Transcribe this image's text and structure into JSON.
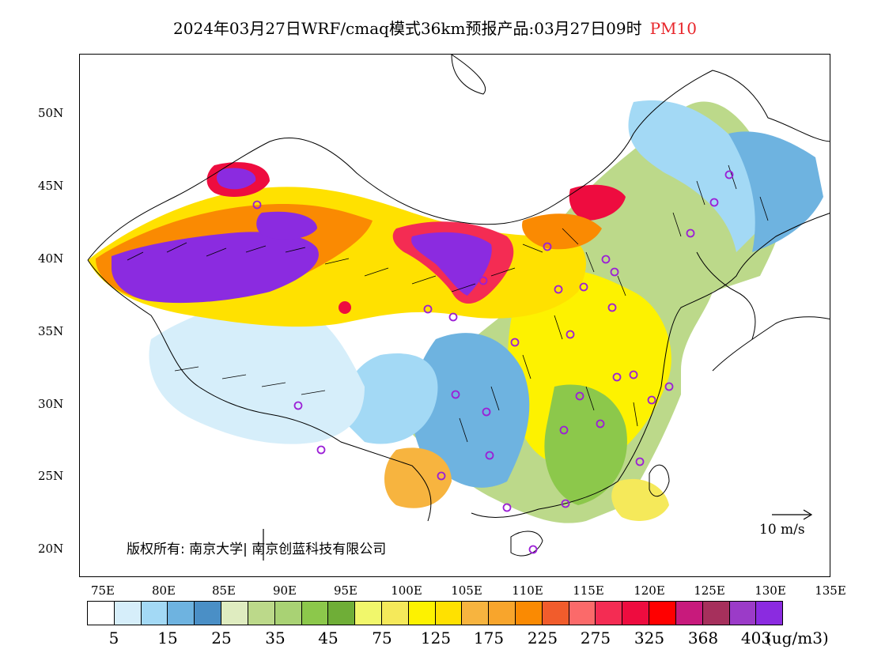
{
  "title": {
    "main": "2024年03月27日WRF/cmaq模式36km预报产品:03月27日09时",
    "variable": "PM10"
  },
  "lat_labels": [
    "50N",
    "45N",
    "40N",
    "35N",
    "30N",
    "25N",
    "20N"
  ],
  "lon_labels": [
    "75E",
    "80E",
    "85E",
    "90E",
    "95E",
    "100E",
    "105E",
    "110E",
    "115E",
    "120E",
    "125E",
    "130E",
    "135E"
  ],
  "copyright": "版权所有: 南京大学| 南京创蓝科技有限公司",
  "wind_reference": "10 m/s",
  "colorbar": {
    "colors": [
      "#ffffff",
      "#d6eefa",
      "#a3d9f5",
      "#6eb3e0",
      "#4a8fc6",
      "#dfecc0",
      "#bcd98a",
      "#a9d274",
      "#8cc84b",
      "#6fae37",
      "#f1f76b",
      "#f5e95a",
      "#fdf200",
      "#ffe100",
      "#f7b43f",
      "#f8a52c",
      "#fa8a02",
      "#f15c2c",
      "#fb6a6a",
      "#f42c53",
      "#ee0c3f",
      "#ff0000",
      "#c81a7c",
      "#a6305c",
      "#9b3bc8",
      "#8b2be0"
    ],
    "labels": [
      "5",
      "15",
      "25",
      "35",
      "45",
      "75",
      "125",
      "175",
      "225",
      "275",
      "325",
      "368",
      "403"
    ],
    "unit": "(ug/m3)"
  }
}
